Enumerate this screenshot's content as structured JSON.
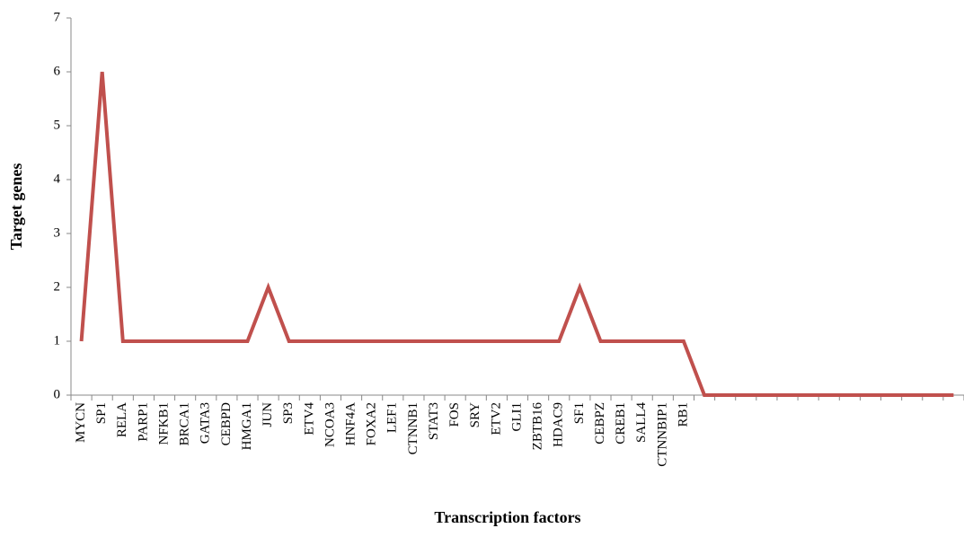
{
  "chart_data": {
    "type": "line",
    "x_label": "Transcription factors",
    "y_label": "Target genes",
    "categories": [
      "MYCN",
      "SP1",
      "RELA",
      "PARP1",
      "NFKB1",
      "BRCA1",
      "GATA3",
      "CEBPD",
      "HMGA1",
      "JUN",
      "SP3",
      "ETV4",
      "NCOA3",
      "HNF4A",
      "FOXA2",
      "LEF1",
      "CTNNB1",
      "STAT3",
      "FOS",
      "SRY",
      "ETV2",
      "GLI1",
      "ZBTB16",
      "HDAC9",
      "SF1",
      "CEBPZ",
      "CREB1",
      "SALL4",
      "CTNNBIP1",
      "RB1",
      null,
      null,
      null,
      null,
      null,
      null,
      null,
      null,
      null,
      null,
      null,
      null,
      null
    ],
    "values": [
      1,
      6,
      1,
      1,
      1,
      1,
      1,
      1,
      1,
      2,
      1,
      1,
      1,
      1,
      1,
      1,
      1,
      1,
      1,
      1,
      1,
      1,
      1,
      1,
      2,
      1,
      1,
      1,
      1,
      1,
      0,
      0,
      0,
      0,
      0,
      0,
      0,
      0,
      0,
      0,
      0,
      0,
      0
    ],
    "color": "#c0504d",
    "ylim": [
      0,
      7
    ],
    "yticks": [
      0,
      1,
      2,
      3,
      4,
      5,
      6,
      7
    ],
    "grid": false
  }
}
